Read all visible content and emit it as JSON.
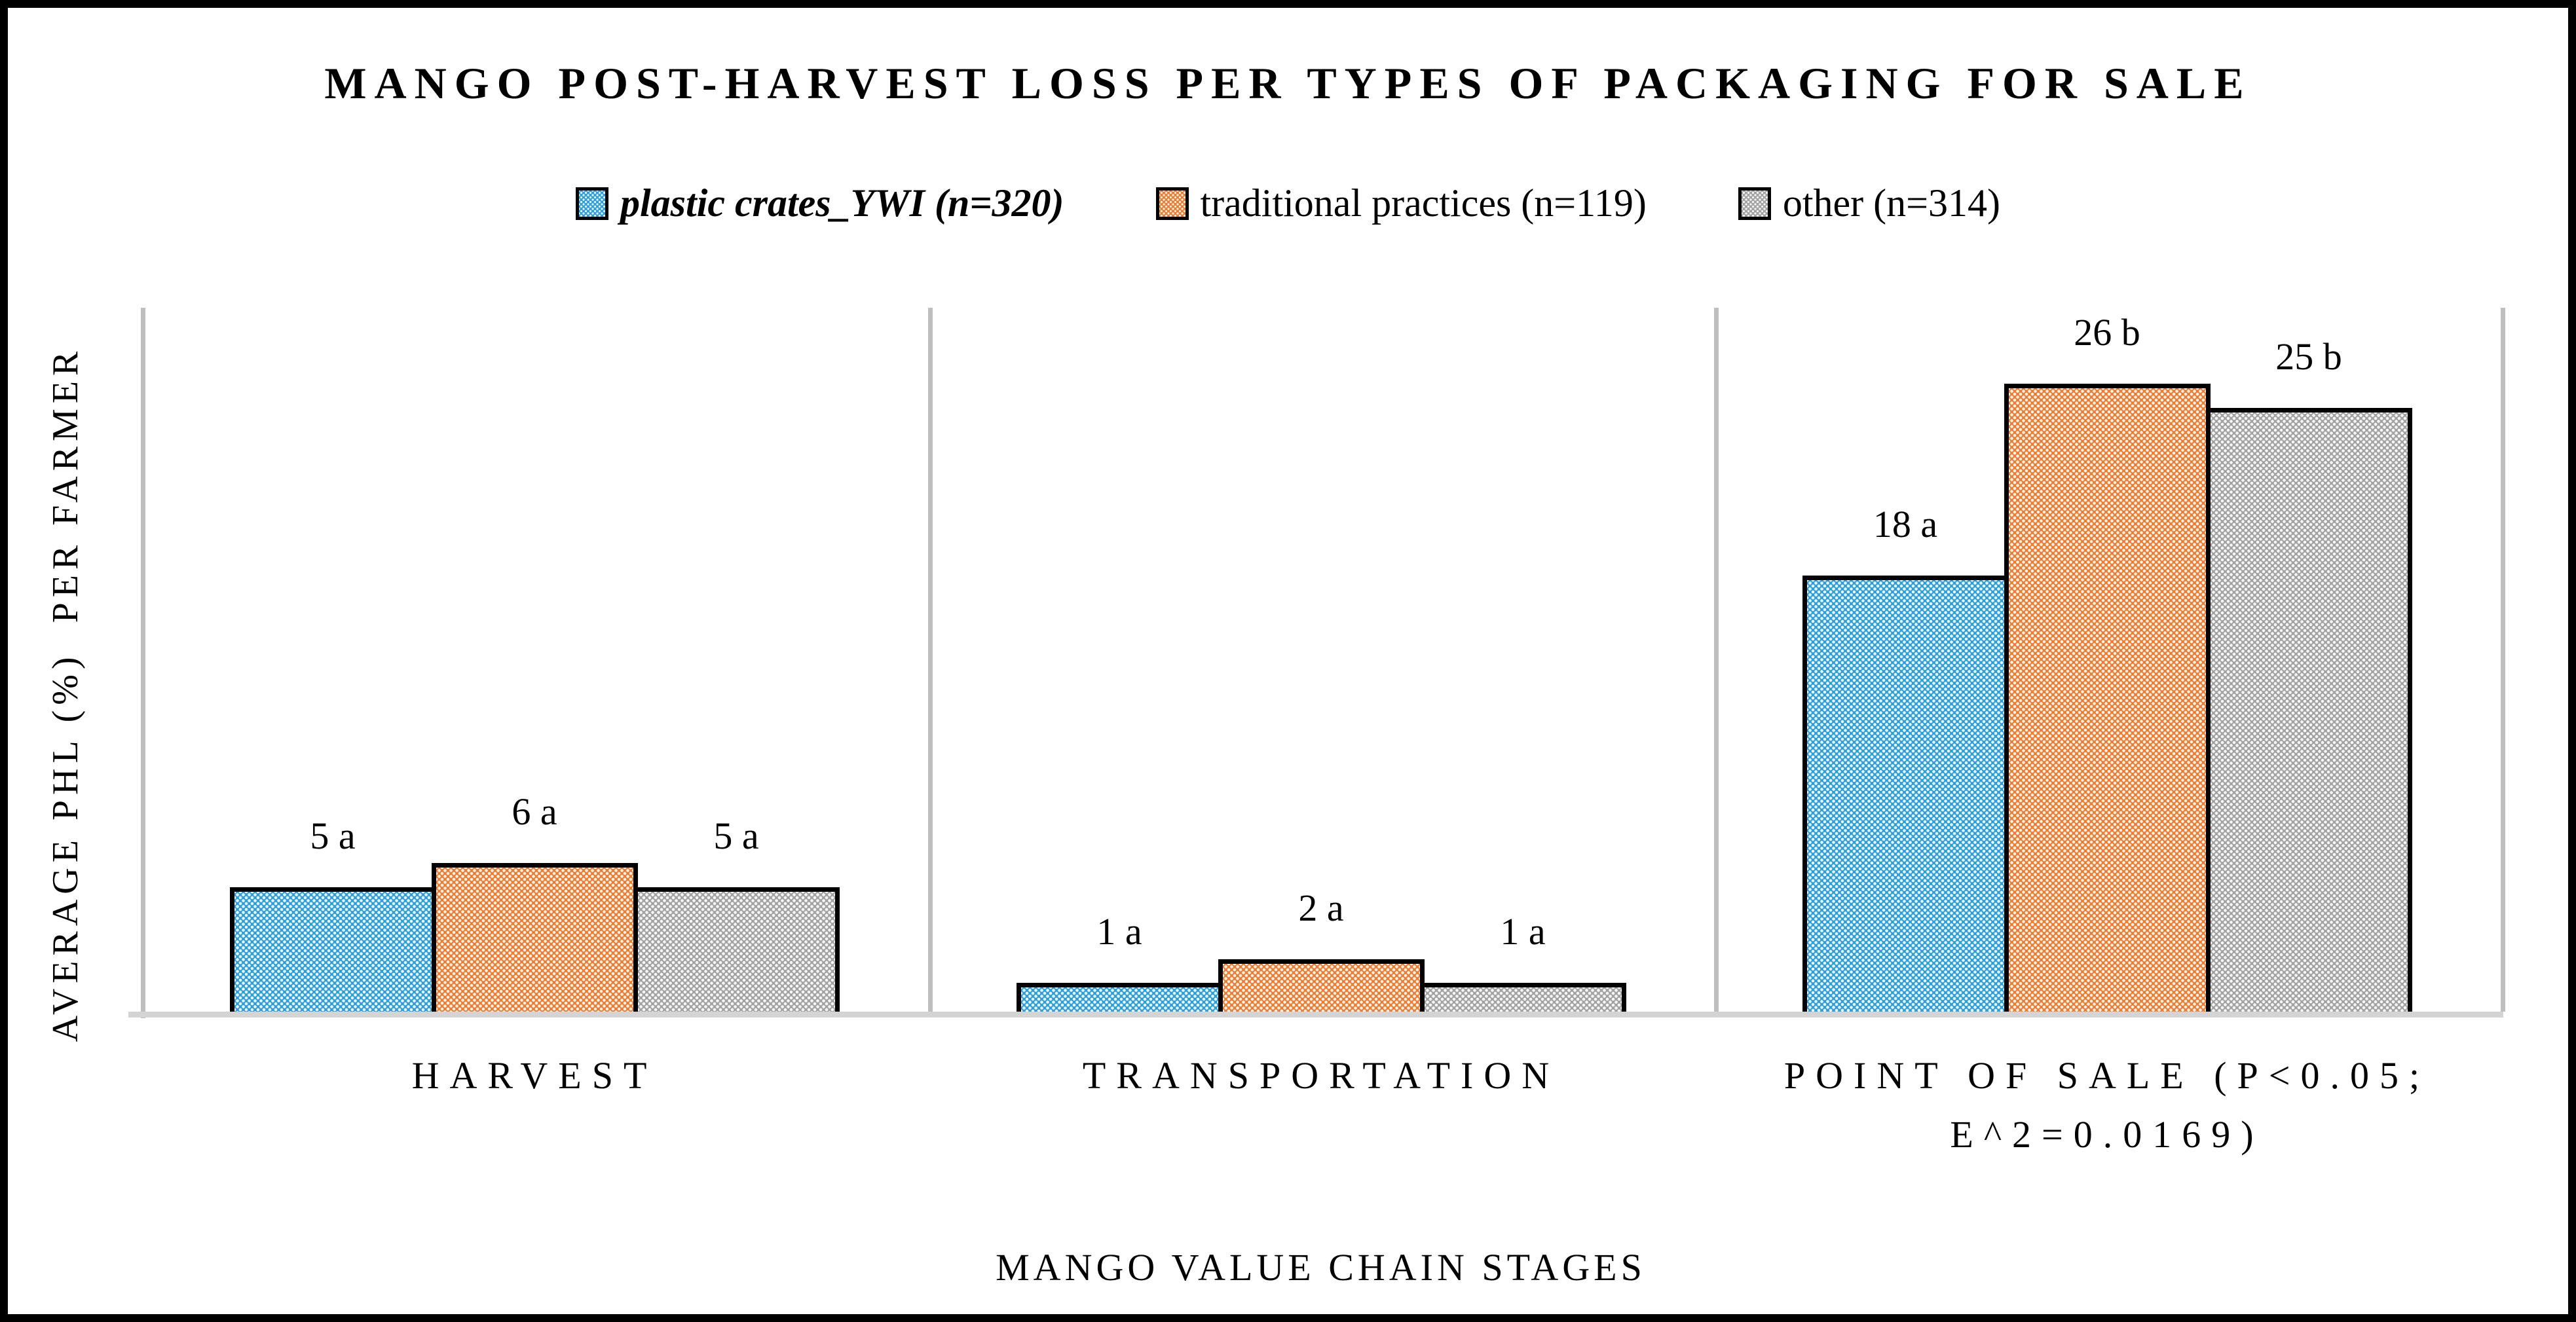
{
  "chart_data": {
    "type": "bar",
    "title": "MANGO POST-HARVEST LOSS PER TYPES OF PACKAGING FOR SALE",
    "xlabel": "MANGO VALUE CHAIN STAGES",
    "ylabel": "AVERAGE PHL (%)  PER FARMER",
    "legend_position": "top",
    "axis": {
      "y_min": 0,
      "y_max_implied": 29.4,
      "y_tick_labels_visible": false,
      "gridlines": false
    },
    "bar_style": {
      "fill_pattern": "white-dot-grid",
      "border_color": "#000000"
    },
    "line_colors": {
      "axis_lines": "#bfbfbf",
      "baseline": "#d4d4d4"
    },
    "categories": [
      {
        "key": "harvest",
        "label": "HARVEST"
      },
      {
        "key": "transportation",
        "label": "TRANSPORTATION"
      },
      {
        "key": "point-of-sale",
        "label": "POINT OF SALE (P<0.05;\nE^2=0.0169)"
      }
    ],
    "series": [
      {
        "key": "plastic-crates-ywi",
        "name": "plastic crates_YWI (n=320)",
        "color": "#2e9fda",
        "emphasis": true,
        "values": [
          5,
          1,
          18
        ],
        "data_labels": [
          "5 a",
          "1 a",
          "18 a"
        ]
      },
      {
        "key": "traditional-practices",
        "name": "traditional practices (n=119)",
        "color": "#ed7d31",
        "emphasis": false,
        "values": [
          6,
          2,
          26
        ],
        "data_labels": [
          "6 a",
          "2 a",
          "26 b"
        ]
      },
      {
        "key": "other",
        "name": "other (n=314)",
        "color": "#a3a3a3",
        "emphasis": false,
        "values": [
          5,
          1,
          25
        ],
        "data_labels": [
          "5 a",
          "1 a",
          "25 b"
        ]
      }
    ]
  }
}
